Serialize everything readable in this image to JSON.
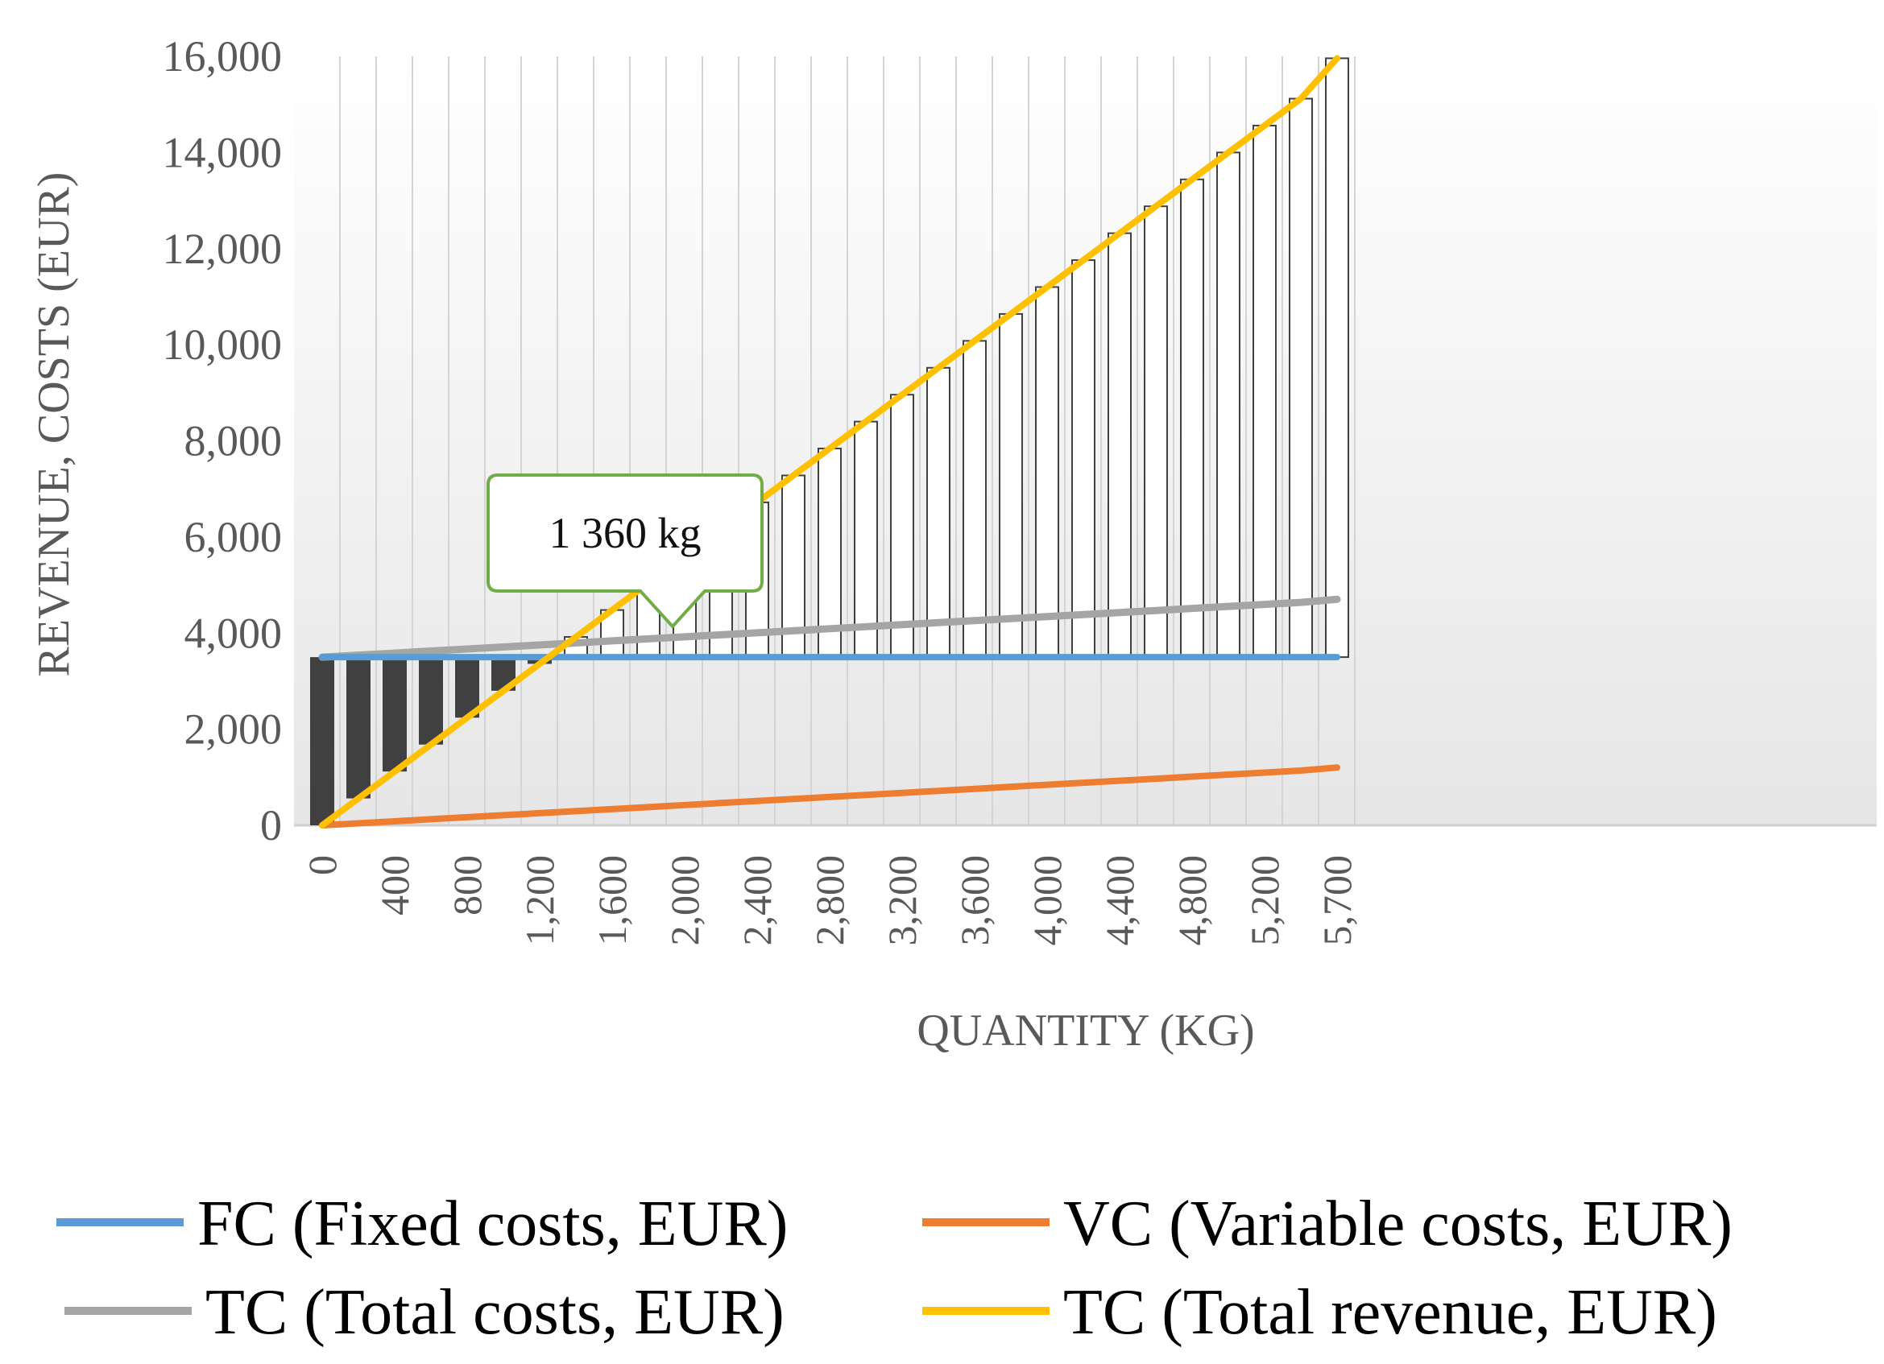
{
  "chart_data": {
    "type": "line",
    "title": "",
    "xlabel": "QUANTITY (KG)",
    "ylabel": "REVENUE, COSTS (EUR)",
    "ylim": [
      0,
      16000
    ],
    "y_ticks": [
      "0",
      "2,000",
      "4,000",
      "6,000",
      "8,000",
      "10,000",
      "12,000",
      "14,000",
      "16,000"
    ],
    "x_values": [
      0,
      200,
      400,
      600,
      800,
      1000,
      1200,
      1400,
      1600,
      1800,
      2000,
      2200,
      2400,
      2600,
      2800,
      3000,
      3200,
      3400,
      3600,
      3800,
      4000,
      4200,
      4400,
      4600,
      4800,
      5000,
      5200,
      5400,
      5700
    ],
    "x_tick_labels": [
      "0",
      "",
      "400",
      "",
      "800",
      "",
      "1,200",
      "",
      "1,600",
      "",
      "2,000",
      "",
      "2,400",
      "",
      "2,800",
      "",
      "3,200",
      "",
      "3,600",
      "",
      "4,000",
      "",
      "4,400",
      "",
      "4,800",
      "",
      "5,200",
      "",
      "5,700"
    ],
    "series": [
      {
        "name": "FC (Fixed costs, EUR)",
        "color": "#5B9BD5",
        "type": "line",
        "values": [
          3500,
          3500,
          3500,
          3500,
          3500,
          3500,
          3500,
          3500,
          3500,
          3500,
          3500,
          3500,
          3500,
          3500,
          3500,
          3500,
          3500,
          3500,
          3500,
          3500,
          3500,
          3500,
          3500,
          3500,
          3500,
          3500,
          3500,
          3500,
          3500
        ]
      },
      {
        "name": "VC (Variable costs, EUR)",
        "color": "#ED7D31",
        "type": "line",
        "values": [
          0,
          42,
          84,
          127,
          169,
          211,
          253,
          295,
          338,
          380,
          422,
          464,
          506,
          548,
          591,
          633,
          675,
          717,
          759,
          802,
          844,
          886,
          928,
          970,
          1013,
          1055,
          1097,
          1139,
          1203
        ]
      },
      {
        "name": "TC (Total costs, EUR)",
        "color": "#A5A5A5",
        "type": "line",
        "values": [
          3500,
          3542,
          3584,
          3627,
          3669,
          3711,
          3753,
          3795,
          3838,
          3880,
          3922,
          3964,
          4006,
          4048,
          4091,
          4133,
          4175,
          4217,
          4259,
          4302,
          4344,
          4386,
          4428,
          4470,
          4513,
          4555,
          4597,
          4639,
          4703
        ]
      },
      {
        "name": "TC (Total revenue, EUR)",
        "color": "#FFC000",
        "type": "line",
        "values": [
          0,
          560,
          1120,
          1680,
          2240,
          2800,
          3360,
          3920,
          4480,
          5040,
          5600,
          6160,
          6720,
          7280,
          7840,
          8400,
          8960,
          9520,
          10080,
          10640,
          11200,
          11760,
          12320,
          12880,
          13440,
          14000,
          14560,
          15120,
          15960
        ]
      }
    ],
    "floating_bars": {
      "description": "profit/loss range between fixed costs and total revenue",
      "base": 3500,
      "loss_color": "#404040",
      "profit_color": "#FFFFFF"
    },
    "annotation": {
      "text": "1 360 kg",
      "x": 1360,
      "border_color": "#70AD47"
    },
    "legend": {
      "placement": "bottom",
      "columns": 2
    }
  }
}
